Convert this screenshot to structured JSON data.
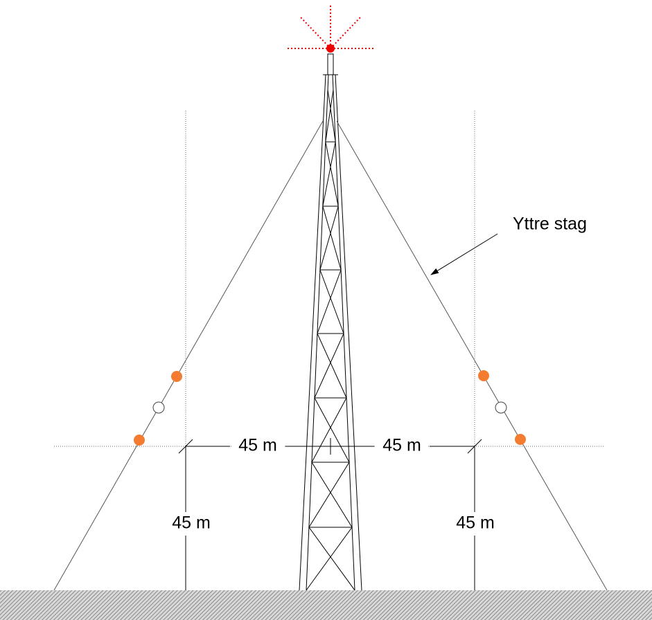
{
  "annotation": "Yttre stag",
  "dimensions": [
    "45 m",
    "45 m",
    "45 m",
    "45 m"
  ]
}
